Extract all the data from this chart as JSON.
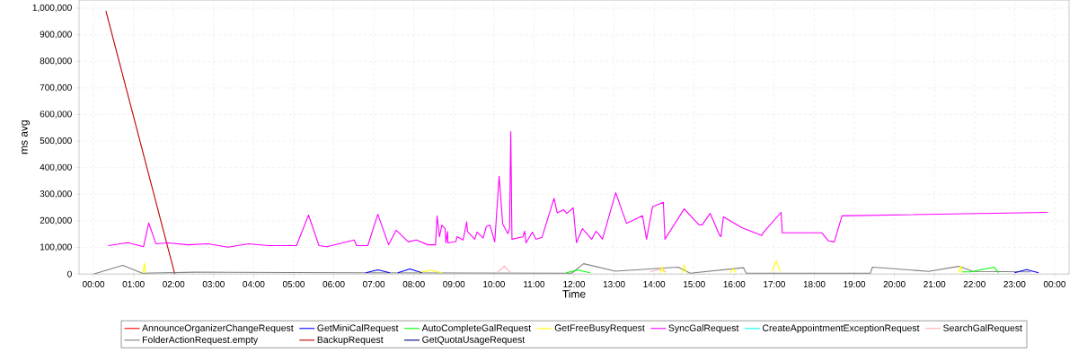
{
  "chart_data": {
    "type": "line",
    "xlabel": "Time",
    "ylabel": "ms avg",
    "xlim": [
      -0.36,
      24.36
    ],
    "ylim": [
      0,
      1030000
    ],
    "xticks": [
      {
        "value": 0,
        "label": "00:00"
      },
      {
        "value": 1,
        "label": "01:00"
      },
      {
        "value": 2,
        "label": "02:00"
      },
      {
        "value": 3,
        "label": "03:00"
      },
      {
        "value": 4,
        "label": "04:00"
      },
      {
        "value": 5,
        "label": "05:00"
      },
      {
        "value": 6,
        "label": "06:00"
      },
      {
        "value": 7,
        "label": "07:00"
      },
      {
        "value": 8,
        "label": "08:00"
      },
      {
        "value": 9,
        "label": "09:00"
      },
      {
        "value": 10,
        "label": "10:00"
      },
      {
        "value": 11,
        "label": "11:00"
      },
      {
        "value": 12,
        "label": "12:00"
      },
      {
        "value": 13,
        "label": "13:00"
      },
      {
        "value": 14,
        "label": "14:00"
      },
      {
        "value": 15,
        "label": "15:00"
      },
      {
        "value": 16,
        "label": "16:00"
      },
      {
        "value": 17,
        "label": "17:00"
      },
      {
        "value": 18,
        "label": "18:00"
      },
      {
        "value": 19,
        "label": "19:00"
      },
      {
        "value": 20,
        "label": "20:00"
      },
      {
        "value": 21,
        "label": "21:00"
      },
      {
        "value": 22,
        "label": "22:00"
      },
      {
        "value": 23,
        "label": "23:00"
      },
      {
        "value": 24,
        "label": "00:00"
      }
    ],
    "yticks": [
      0,
      {
        "value": 100000,
        "label": "100,000"
      },
      {
        "value": 200000,
        "label": "200,000"
      },
      {
        "value": 300000,
        "label": "300,000"
      },
      {
        "value": 400000,
        "label": "400,000"
      },
      {
        "value": 500000,
        "label": "500,000"
      },
      {
        "value": 600000,
        "label": "600,000"
      },
      {
        "value": 700000,
        "label": "700,000"
      },
      {
        "value": 800000,
        "label": "800,000"
      },
      {
        "value": 900000,
        "label": "900,000"
      },
      {
        "value": 1000000,
        "label": "1,000,000"
      }
    ],
    "grid": true,
    "legend": "bottom",
    "marker": "none",
    "line_style": "solid",
    "series": [
      {
        "name": "AnnounceOrganizerChangeRequest",
        "color": "#ff0000"
      },
      {
        "name": "GetMiniCalRequest",
        "color": "#0000ff",
        "x": [
          6.8,
          7.1,
          7.4,
          7.5,
          7.6,
          7.9,
          8.2,
          8.5,
          23.0,
          23.3,
          23.6
        ],
        "values": [
          5000,
          16000,
          5000,
          null,
          5000,
          19000,
          5000,
          null,
          5000,
          17000,
          5000
        ]
      },
      {
        "name": "AutoCompleteGalRequest",
        "color": "#00ff00",
        "x": [
          11.8,
          12.1,
          12.4,
          17.0,
          21.7,
          21.9,
          22.49,
          22.6
        ],
        "values": [
          5000,
          15000,
          5000,
          null,
          8000,
          8000,
          26000,
          5000
        ]
      },
      {
        "name": "GetFreeBusyRequest",
        "color": "#ffff00",
        "x": [
          1.24,
          1.27,
          1.3,
          5.0,
          8.1,
          8.4,
          8.7,
          11.0,
          14.15,
          14.2,
          14.25,
          14.5,
          14.7,
          14.75,
          14.8,
          15.5,
          15.9,
          15.97,
          16.05,
          16.5,
          16.95,
          17.05,
          17.15,
          19.0,
          21.6,
          21.65,
          21.7
        ],
        "values": [
          5000,
          40000,
          5000,
          null,
          5000,
          15000,
          5000,
          null,
          5000,
          26000,
          5000,
          null,
          5000,
          33000,
          5000,
          null,
          5000,
          20000,
          5000,
          null,
          10000,
          50000,
          10000,
          null,
          5000,
          30000,
          5000
        ]
      },
      {
        "name": "SyncGalRequest",
        "color": "#ff00ff",
        "x": [
          0.37,
          0.86,
          1.25,
          1.38,
          1.56,
          1.87,
          2.36,
          2.86,
          3.36,
          3.87,
          4.35,
          5.07,
          5.37,
          5.63,
          5.83,
          6.51,
          6.57,
          6.85,
          7.1,
          7.37,
          7.56,
          7.86,
          8.06,
          8.35,
          8.54,
          8.58,
          8.64,
          8.7,
          8.78,
          8.8,
          8.84,
          8.85,
          9.05,
          9.08,
          9.23,
          9.32,
          9.34,
          9.52,
          9.58,
          9.73,
          9.81,
          9.9,
          10.02,
          10.13,
          10.22,
          10.35,
          10.39,
          10.42,
          10.45,
          10.72,
          10.77,
          10.8,
          10.96,
          11.05,
          11.2,
          11.5,
          11.58,
          11.74,
          11.82,
          11.98,
          12.06,
          12.21,
          12.44,
          12.55,
          12.6,
          12.71,
          13.04,
          13.31,
          13.71,
          13.81,
          13.96,
          14.23,
          14.27,
          14.75,
          15.12,
          15.2,
          15.4,
          15.64,
          15.67,
          15.73,
          16.2,
          16.69,
          16.72,
          17.17,
          17.2,
          18.19,
          18.35,
          18.5,
          18.69,
          23.83
        ],
        "values": [
          107000,
          118000,
          103000,
          192000,
          114000,
          117000,
          110000,
          114000,
          101000,
          114000,
          107000,
          107000,
          222000,
          107000,
          103000,
          128000,
          107000,
          107000,
          225000,
          110000,
          165000,
          121000,
          128000,
          110000,
          110000,
          218000,
          140000,
          184000,
          171000,
          117000,
          160000,
          117000,
          122000,
          141000,
          128000,
          196000,
          160000,
          131000,
          158000,
          135000,
          179000,
          184000,
          121000,
          368000,
          187000,
          152000,
          172000,
          536000,
          131000,
          140000,
          161000,
          117000,
          158000,
          131000,
          138000,
          285000,
          230000,
          242000,
          228000,
          249000,
          118000,
          171000,
          131000,
          161000,
          153000,
          131000,
          306000,
          191000,
          219000,
          131000,
          253000,
          270000,
          131000,
          245000,
          185000,
          185000,
          228000,
          144000,
          141000,
          215000,
          174000,
          145000,
          155000,
          232000,
          155000,
          155000,
          125000,
          121000,
          219000,
          232000
        ]
      },
      {
        "name": "CreateAppointmentExceptionRequest",
        "color": "#00ffff"
      },
      {
        "name": "SearchGalRequest",
        "color": "#ffafaf",
        "x": [
          10.1,
          10.26,
          10.4,
          12.0,
          13.9,
          14.16,
          14.3
        ],
        "values": [
          8000,
          30000,
          8000,
          null,
          8000,
          19000,
          8000
        ]
      },
      {
        "name": "FolderActionRequest.empty",
        "color": "#808080",
        "x": [
          0.0,
          0.73,
          1.22,
          2.57,
          6.57,
          11.94,
          12.24,
          13.03,
          14.6,
          14.9,
          16.23,
          16.3,
          19.4,
          19.45,
          20.85,
          21.61,
          21.96,
          23.4
        ],
        "values": [
          0,
          33000,
          3000,
          7000,
          5000,
          3000,
          39000,
          11000,
          26000,
          3000,
          24000,
          3000,
          3000,
          26000,
          10000,
          29000,
          10000,
          8000
        ]
      },
      {
        "name": "BackupRequest",
        "color": "#c00000",
        "x": [
          0.31,
          2.03
        ],
        "values": [
          990000,
          0
        ]
      },
      {
        "name": "GetQuotaUsageRequest",
        "color": "#000080"
      }
    ]
  }
}
